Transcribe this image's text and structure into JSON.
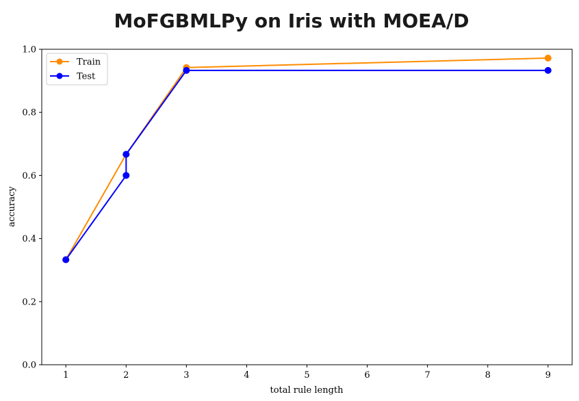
{
  "chart_data": {
    "type": "line",
    "title": "MoFGBMLPy on Iris with MOEA/D",
    "xlabel": "total rule length",
    "ylabel": "accuracy",
    "xlim": [
      0.6,
      9.4
    ],
    "ylim": [
      0.0,
      1.0
    ],
    "xticks": [
      1,
      2,
      3,
      4,
      5,
      6,
      7,
      8,
      9
    ],
    "yticks": [
      0.0,
      0.2,
      0.4,
      0.6,
      0.8,
      1.0
    ],
    "ytick_labels": [
      "0.0",
      "0.2",
      "0.4",
      "0.6",
      "0.8",
      "1.0"
    ],
    "grid": false,
    "legend_position": "top-left",
    "series": [
      {
        "name": "Train",
        "color": "#ff8c00",
        "x": [
          1,
          2,
          3,
          9
        ],
        "y": [
          0.333,
          0.667,
          0.942,
          0.972
        ]
      },
      {
        "name": "Test",
        "color": "#0000ff",
        "x": [
          1,
          2,
          2,
          3,
          9
        ],
        "y": [
          0.333,
          0.6,
          0.667,
          0.933,
          0.933
        ]
      }
    ]
  }
}
